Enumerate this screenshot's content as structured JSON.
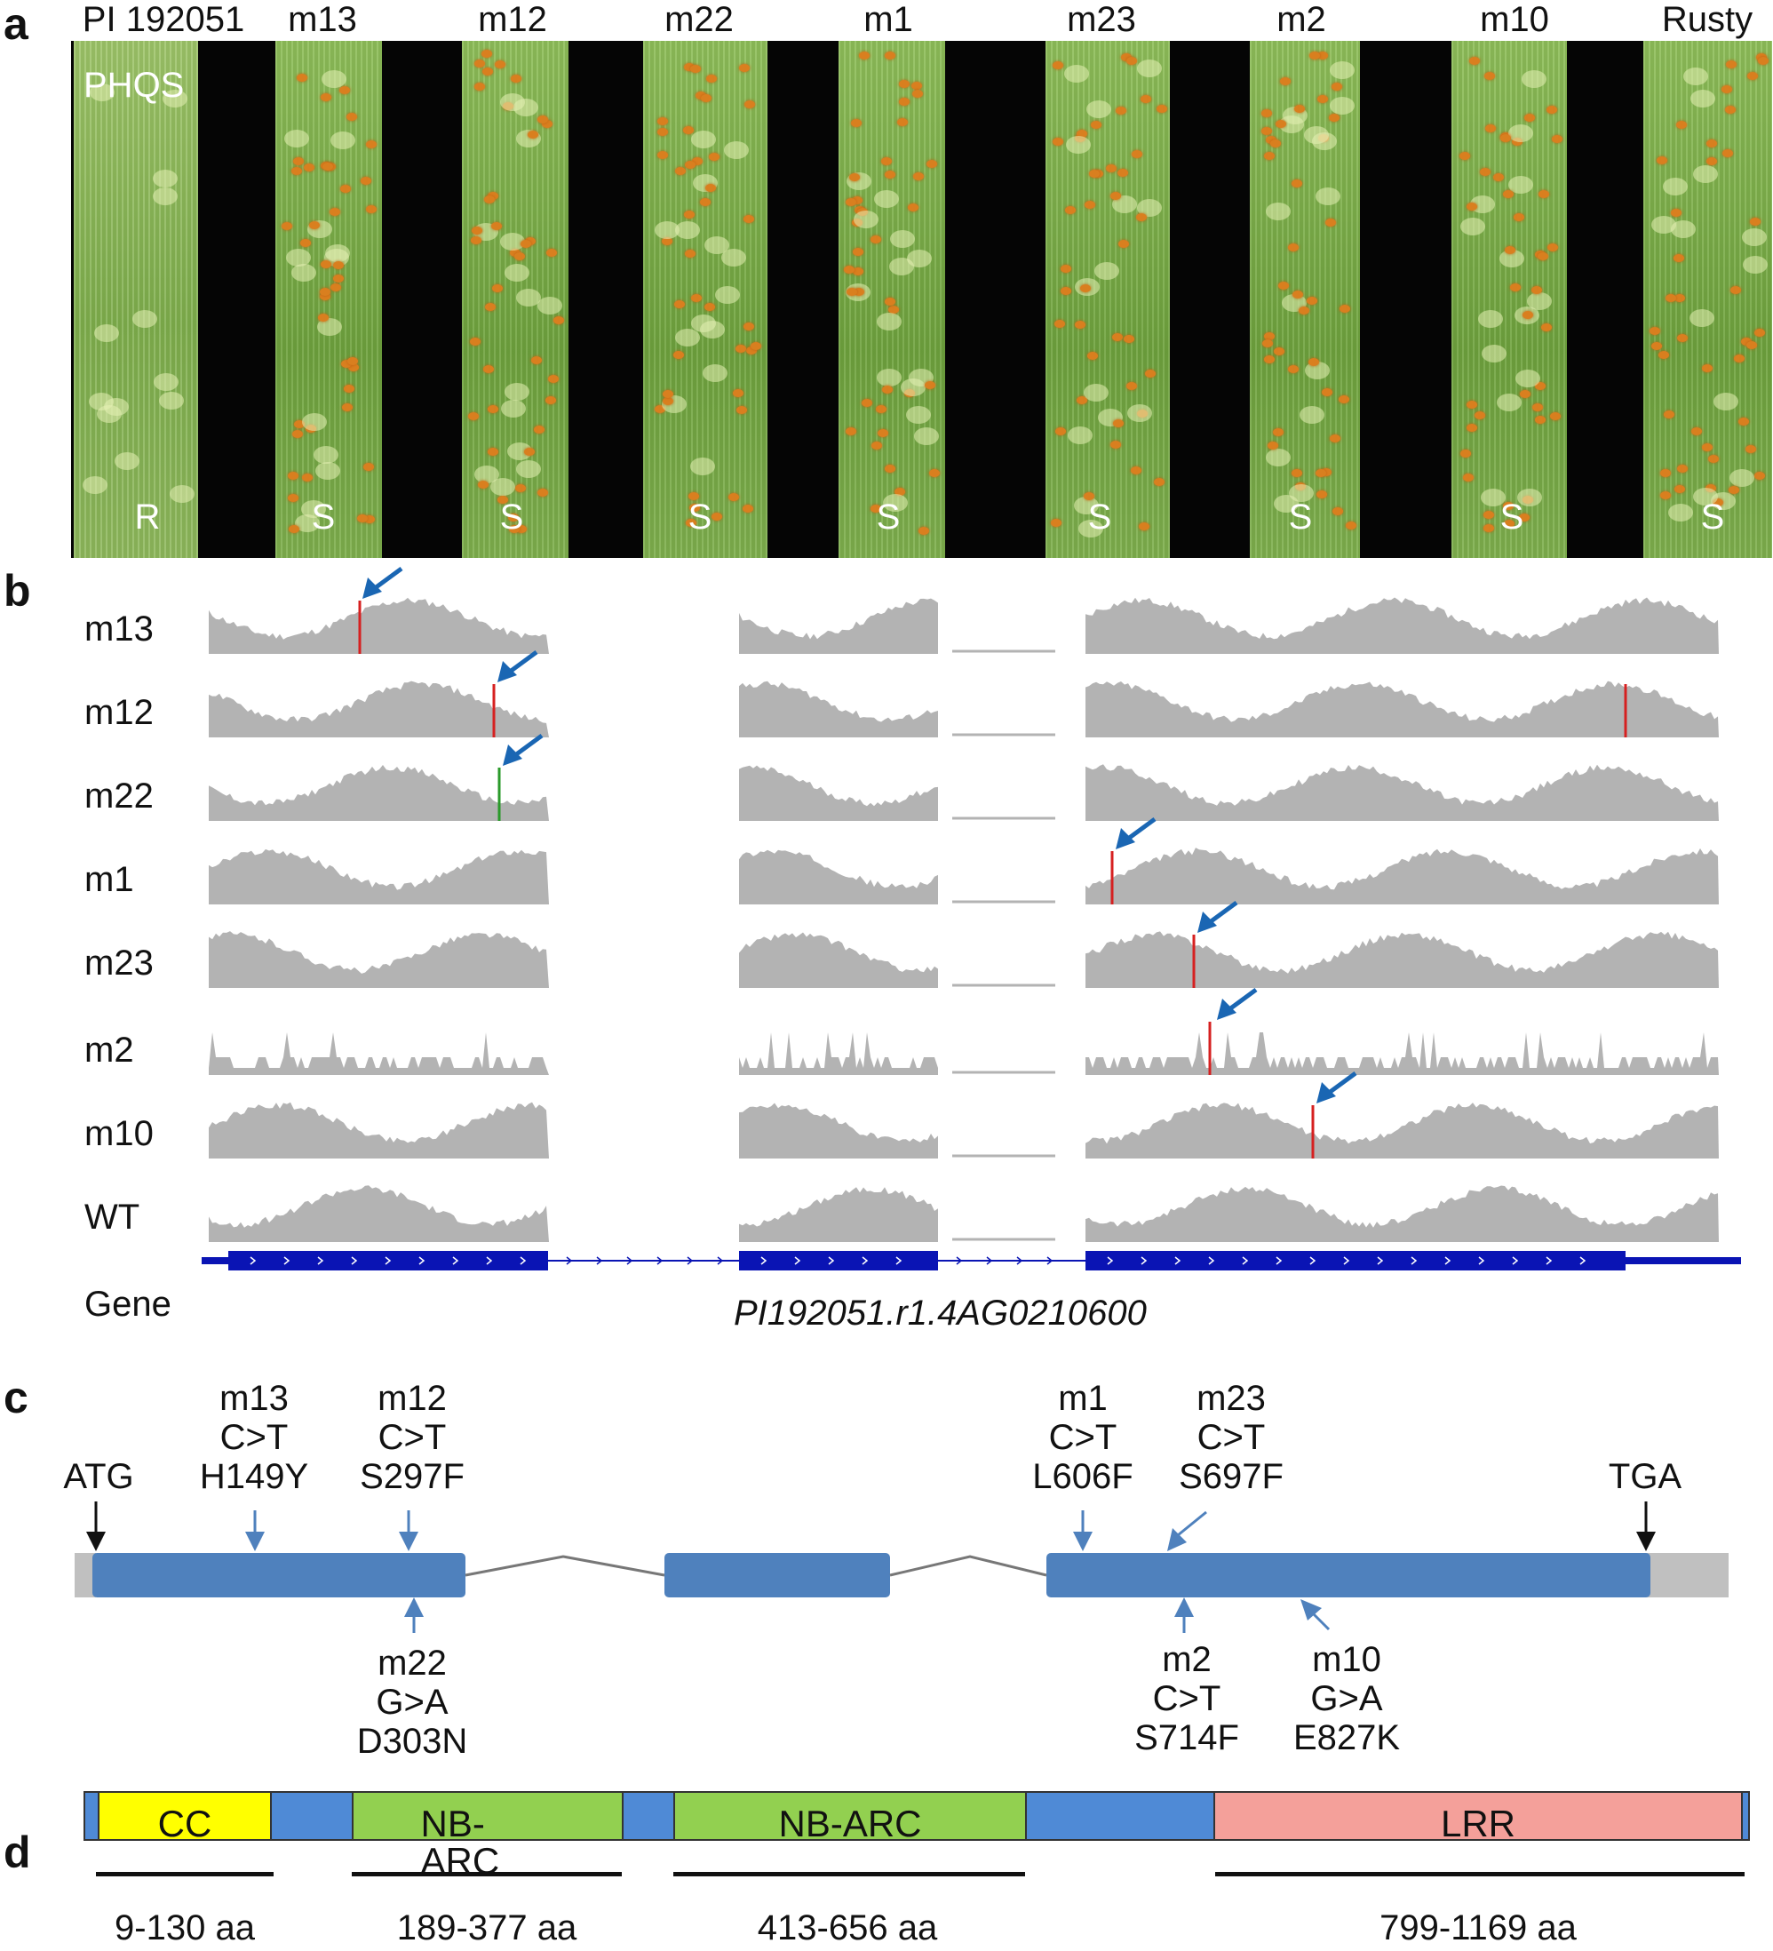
{
  "panels": {
    "a": "a",
    "b": "b",
    "c": "c",
    "d": "d"
  },
  "panel_a": {
    "lines": [
      "PI 192051",
      "m13",
      "m12",
      "m22",
      "m1",
      "m23",
      "m2",
      "m10",
      "Rusty"
    ],
    "image_label": "PHQS",
    "phenotypes": [
      "R",
      "S",
      "S",
      "S",
      "S",
      "S",
      "S",
      "S",
      "S"
    ]
  },
  "panel_b": {
    "tracks": [
      "m13",
      "m12",
      "m22",
      "m1",
      "m23",
      "m2",
      "m10",
      "WT"
    ],
    "gene_row_label": "Gene",
    "gene_name": "PI192051.r1.4AG0210600",
    "colors": {
      "coverage": "#b3b3b3",
      "arrow": "#1a66b3",
      "exon": "#0a14b4",
      "snp_red": "#d62020",
      "snp_green": "#2a9a2a"
    }
  },
  "panel_c": {
    "start_codon": "ATG",
    "stop_codon": "TGA",
    "mutations_above": [
      {
        "line": "m13",
        "change": "C>T",
        "aa": "H149Y"
      },
      {
        "line": "m12",
        "change": "C>T",
        "aa": "S297F"
      },
      {
        "line": "m1",
        "change": "C>T",
        "aa": "L606F"
      },
      {
        "line": "m23",
        "change": "C>T",
        "aa": "S697F"
      }
    ],
    "mutations_below": [
      {
        "line": "m22",
        "change": "G>A",
        "aa": "D303N"
      },
      {
        "line": "m2",
        "change": "C>T",
        "aa": "S714F"
      },
      {
        "line": "m10",
        "change": "G>A",
        "aa": "E827K"
      }
    ],
    "colors": {
      "exon": "#4f81bd",
      "utr": "#c0c0c0",
      "arrow": "#4f81bd"
    }
  },
  "panel_d": {
    "domains": [
      {
        "name": "CC",
        "range": "9-130 aa",
        "color": "#ffff00"
      },
      {
        "name": "NB-ARC",
        "range": "189-377 aa",
        "color": "#92d050"
      },
      {
        "name": "NB-ARC",
        "range": "413-656 aa",
        "color": "#92d050"
      },
      {
        "name": "LRR",
        "range": "799-1169 aa",
        "color": "#f4a09a"
      }
    ],
    "backbone_color": "#4f8ad6"
  }
}
